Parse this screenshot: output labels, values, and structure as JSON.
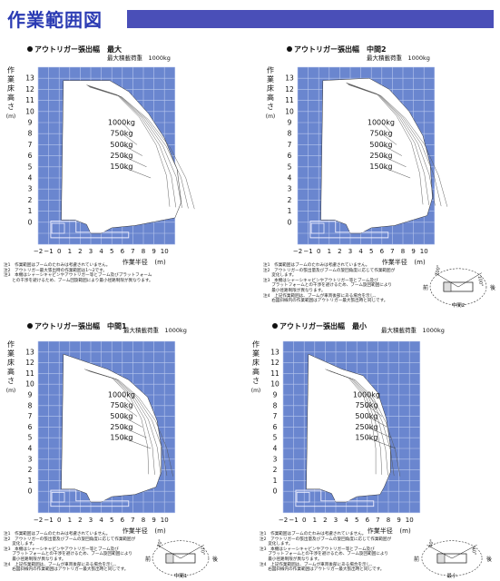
{
  "page_title": "作業範囲図",
  "y_axis_label_chars": [
    "作",
    "業",
    "床",
    "高",
    "さ",
    "(m)"
  ],
  "x_axis_label": "作業半径",
  "x_unit": "(m)",
  "y_ticks": [
    "13",
    "12",
    "11",
    "10",
    "9",
    "8",
    "7",
    "6",
    "5",
    "4",
    "3",
    "2",
    "1",
    "0"
  ],
  "x_ticks": [
    "−2",
    "−1",
    "0",
    "1",
    "2",
    "3",
    "4",
    "5",
    "6",
    "7",
    "8",
    "9",
    "10"
  ],
  "panels": [
    {
      "title": "アウトリガー張出幅　最大",
      "max_load": "最大積載荷重　1000kg",
      "loads": [
        "1000kg",
        "750kg",
        "500kg",
        "250kg",
        "150kg"
      ],
      "notes": [
        "注1　作業範囲はブームのたわみは考慮されていません。",
        "注2　アウトリガー最大張出時の作業範囲は1〜2です。",
        "注3　本機はシャーシキャビンやアウトリガー等とブーム及びプラットフォーム",
        "　　との干渉を避けるため、ブーム回旋範囲により最小径路制限が異なります。"
      ]
    },
    {
      "title": "アウトリガー張出幅　中間2",
      "max_load": "最大積載荷重　1000kg",
      "loads": [
        "1000kg",
        "750kg",
        "500kg",
        "250kg",
        "150kg"
      ],
      "notes": [
        "注1　作業範囲はブームのたわみは考慮されていません。",
        "注2　アウトリガーの張出量及びブームの旋回角度に応じて作業範囲が",
        "　　変化します。",
        "注3　本機はシャーシキャビンやアウトリガー等とブーム及び",
        "　　プラットフォームとの干渉を避けるため、ブーム旋回範囲により",
        "　　最小径路制限が異なります。",
        "注4　上記作業範囲は、ブームが車両後部にある場合を示し、",
        "　　右図斜線内の作業範囲はアウトリガー最大張出時と同じです。"
      ],
      "diagram_labels": {
        "front": "前",
        "rear": "後",
        "left_angle": "100°",
        "right_angle": "100°",
        "center": "中間2"
      }
    },
    {
      "title": "アウトリガー張出幅　中間1",
      "max_load": "最大積載荷重　1000kg",
      "loads": [
        "1000kg",
        "750kg",
        "500kg",
        "250kg",
        "150kg"
      ],
      "notes": [
        "注1　作業範囲はブームのたわみは考慮されていません。",
        "注2　アウトリガーの張出量及びブームの旋回角度に応じて作業範囲が",
        "　　変化します。",
        "注3　本機はシャーシキャビンやアウトリガー等とブーム及び",
        "　　プラットフォームとの干渉を避けるため、ブーム旋回範囲により",
        "　　最小径路制限が異なります。",
        "注4　上記作業範囲は、ブームが車両後部にある場合を示し、",
        "　　右図斜線内の作業範囲はアウトリガー最大張出時と同じです。"
      ],
      "diagram_labels": {
        "front": "前",
        "rear": "後",
        "left_angle": "70°",
        "right_angle": "70°",
        "center": "中間1"
      }
    },
    {
      "title": "アウトリガー張出幅　最小",
      "max_load": "最大積載荷重　1000kg",
      "loads": [
        "1000kg",
        "750kg",
        "500kg",
        "250kg",
        "150kg"
      ],
      "notes": [
        "注1　作業範囲はブームのたわみは考慮されていません。",
        "注2　アウトリガーの張出量及びブームの旋回角度に応じて作業範囲が",
        "　　変化します。",
        "注3　本機はシャーシキャビンやアウトリガー等とブーム及び",
        "　　プラットフォームとの干渉を避けるため、ブーム旋回範囲により",
        "　　最小径路制限が異なります。",
        "注4　上記作業範囲は、ブームが車両後部にある場合を示し、",
        "　　右図斜線内の作業範囲はアウトリガー最大張出時と同じです。"
      ],
      "diagram_labels": {
        "front": "前",
        "rear": "後",
        "left_angle": "40°",
        "right_angle": "40°",
        "center": "最小"
      }
    }
  ]
}
